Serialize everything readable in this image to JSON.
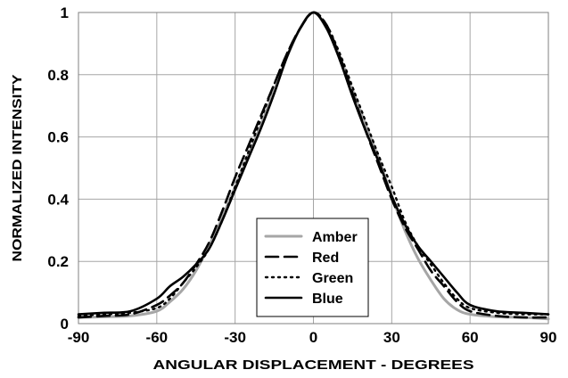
{
  "chart_data": {
    "type": "line",
    "title": "",
    "xlabel": "ANGULAR DISPLACEMENT - DEGREES",
    "ylabel": "NORMALIZED INTENSITY",
    "xlim": [
      -90,
      90
    ],
    "ylim": [
      0,
      1
    ],
    "xticks": [
      -90,
      -60,
      -30,
      0,
      30,
      60,
      90
    ],
    "yticks": [
      0,
      0.2,
      0.4,
      0.6,
      0.8,
      1
    ],
    "x_tick_labels": [
      "-90",
      "-60",
      "-30",
      "0",
      "30",
      "60",
      "90"
    ],
    "y_tick_labels": [
      "0",
      "0.2",
      "0.4",
      "0.6",
      "0.8",
      "1"
    ],
    "grid": true,
    "legend_position": "bottom-center",
    "series": [
      {
        "name": "Amber",
        "color": "#a6a6a6",
        "dash": "solid",
        "x": [
          -90,
          -80,
          -70,
          -60,
          -55,
          -50,
          -45,
          -40,
          -35,
          -30,
          -25,
          -20,
          -15,
          -10,
          -5,
          0,
          5,
          10,
          15,
          20,
          25,
          30,
          35,
          40,
          45,
          50,
          55,
          60,
          70,
          80,
          90
        ],
        "y": [
          0.02,
          0.022,
          0.025,
          0.04,
          0.07,
          0.11,
          0.17,
          0.25,
          0.34,
          0.44,
          0.54,
          0.64,
          0.75,
          0.86,
          0.95,
          1.0,
          0.95,
          0.86,
          0.75,
          0.64,
          0.53,
          0.41,
          0.3,
          0.21,
          0.14,
          0.08,
          0.045,
          0.03,
          0.022,
          0.02,
          0.015
        ]
      },
      {
        "name": "Red",
        "color": "#000000",
        "dash": "long-dash",
        "x": [
          -90,
          -80,
          -70,
          -60,
          -55,
          -50,
          -45,
          -40,
          -35,
          -30,
          -25,
          -20,
          -15,
          -10,
          -5,
          0,
          5,
          10,
          15,
          20,
          25,
          30,
          35,
          40,
          45,
          50,
          55,
          60,
          70,
          80,
          90
        ],
        "y": [
          0.02,
          0.025,
          0.03,
          0.06,
          0.09,
          0.13,
          0.19,
          0.26,
          0.36,
          0.47,
          0.57,
          0.67,
          0.77,
          0.87,
          0.95,
          1.0,
          0.96,
          0.86,
          0.74,
          0.62,
          0.51,
          0.4,
          0.31,
          0.24,
          0.17,
          0.12,
          0.07,
          0.04,
          0.025,
          0.02,
          0.02
        ]
      },
      {
        "name": "Green",
        "color": "#000000",
        "dash": "dotted",
        "x": [
          -90,
          -80,
          -70,
          -60,
          -55,
          -50,
          -45,
          -40,
          -35,
          -30,
          -25,
          -20,
          -15,
          -10,
          -5,
          0,
          5,
          10,
          15,
          20,
          25,
          30,
          35,
          40,
          45,
          50,
          55,
          60,
          70,
          80,
          90
        ],
        "y": [
          0.025,
          0.03,
          0.035,
          0.05,
          0.08,
          0.13,
          0.18,
          0.24,
          0.33,
          0.44,
          0.55,
          0.66,
          0.77,
          0.87,
          0.95,
          1.0,
          0.96,
          0.87,
          0.76,
          0.65,
          0.54,
          0.44,
          0.33,
          0.25,
          0.19,
          0.13,
          0.08,
          0.05,
          0.035,
          0.03,
          0.03
        ]
      },
      {
        "name": "Blue",
        "color": "#000000",
        "dash": "solid",
        "x": [
          -90,
          -80,
          -70,
          -60,
          -55,
          -50,
          -45,
          -40,
          -35,
          -30,
          -25,
          -20,
          -15,
          -10,
          -5,
          0,
          5,
          10,
          15,
          20,
          25,
          30,
          35,
          40,
          45,
          50,
          55,
          60,
          70,
          80,
          90
        ],
        "y": [
          0.03,
          0.035,
          0.04,
          0.08,
          0.12,
          0.15,
          0.19,
          0.24,
          0.33,
          0.43,
          0.53,
          0.63,
          0.74,
          0.86,
          0.95,
          1.0,
          0.95,
          0.85,
          0.73,
          0.62,
          0.52,
          0.41,
          0.32,
          0.25,
          0.2,
          0.15,
          0.1,
          0.06,
          0.04,
          0.035,
          0.03
        ]
      }
    ]
  }
}
